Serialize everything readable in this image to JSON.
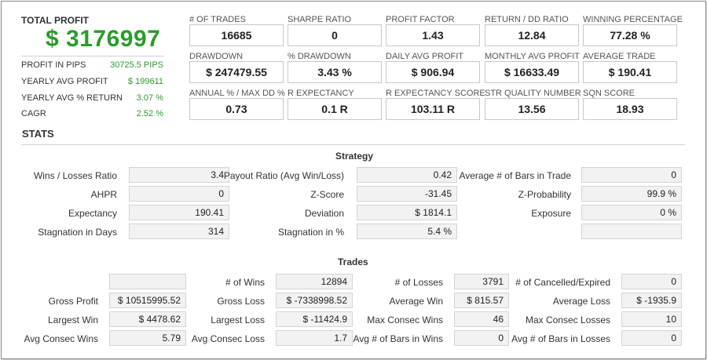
{
  "summary": {
    "total_profit_label": "TOTAL PROFIT",
    "total_profit_value": "$ 3176997",
    "rows": [
      {
        "label": "PROFIT IN PIPS",
        "value": "30725.5 PIPS"
      },
      {
        "label": "YEARLY AVG PROFIT",
        "value": "$ 199611"
      },
      {
        "label": "YEARLY AVG % RETURN",
        "value": "3.07 %"
      },
      {
        "label": "CAGR",
        "value": "2.52 %"
      }
    ]
  },
  "metrics": [
    {
      "label": "# OF TRADES",
      "value": "16685"
    },
    {
      "label": "SHARPE RATIO",
      "value": "0"
    },
    {
      "label": "PROFIT FACTOR",
      "value": "1.43"
    },
    {
      "label": "RETURN / DD RATIO",
      "value": "12.84"
    },
    {
      "label": "WINNING PERCENTAGE",
      "value": "77.28 %"
    },
    {
      "label": "DRAWDOWN",
      "value": "$ 247479.55"
    },
    {
      "label": "% DRAWDOWN",
      "value": "3.43 %"
    },
    {
      "label": "DAILY AVG PROFIT",
      "value": "$ 906.94"
    },
    {
      "label": "MONTHLY AVG PROFIT",
      "value": "$ 16633.49"
    },
    {
      "label": "AVERAGE TRADE",
      "value": "$ 190.41"
    },
    {
      "label": "ANNUAL % / MAX DD %",
      "value": "0.73"
    },
    {
      "label": "R EXPECTANCY",
      "value": "0.1 R"
    },
    {
      "label": "R EXPECTANCY SCORE",
      "value": "103.11 R"
    },
    {
      "label": "STR QUALITY NUMBER",
      "value": "13.56"
    },
    {
      "label": "SQN SCORE",
      "value": "18.93"
    }
  ],
  "stats_title": "STATS",
  "strategy": {
    "title": "Strategy",
    "rows": [
      [
        {
          "label": "Wins / Losses Ratio",
          "value": "3.4"
        },
        {
          "label": "Payout Ratio (Avg Win/Loss)",
          "value": "0.42"
        },
        {
          "label": "Average # of Bars in Trade",
          "value": "0"
        }
      ],
      [
        {
          "label": "AHPR",
          "value": "0"
        },
        {
          "label": "Z-Score",
          "value": "-31.45"
        },
        {
          "label": "Z-Probability",
          "value": "99.9 %"
        }
      ],
      [
        {
          "label": "Expectancy",
          "value": "190.41"
        },
        {
          "label": "Deviation",
          "value": "$ 1814.1"
        },
        {
          "label": "Exposure",
          "value": "0 %"
        }
      ],
      [
        {
          "label": "Stagnation in Days",
          "value": "314"
        },
        {
          "label": "Stagnation in %",
          "value": "5.4 %"
        },
        {
          "label": "",
          "value": ""
        }
      ]
    ]
  },
  "trades": {
    "title": "Trades",
    "rows": [
      [
        {
          "label": "",
          "value": ""
        },
        {
          "label": "# of Wins",
          "value": "12894"
        },
        {
          "label": "# of Losses",
          "value": "3791"
        },
        {
          "label": "# of Cancelled/Expired",
          "value": "0"
        }
      ],
      [
        {
          "label": "Gross Profit",
          "value": "$ 10515995.52"
        },
        {
          "label": "Gross Loss",
          "value": "$ -7338998.52"
        },
        {
          "label": "Average Win",
          "value": "$ 815.57"
        },
        {
          "label": "Average Loss",
          "value": "$ -1935.9"
        }
      ],
      [
        {
          "label": "Largest Win",
          "value": "$ 4478.62"
        },
        {
          "label": "Largest Loss",
          "value": "$ -11424.9"
        },
        {
          "label": "Max Consec Wins",
          "value": "46"
        },
        {
          "label": "Max Consec Losses",
          "value": "10"
        }
      ],
      [
        {
          "label": "Avg Consec Wins",
          "value": "5.79"
        },
        {
          "label": "Avg Consec Loss",
          "value": "1.7"
        },
        {
          "label": "Avg # of Bars in Wins",
          "value": "0"
        },
        {
          "label": "Avg # of Bars in Losses",
          "value": "0"
        }
      ]
    ]
  }
}
